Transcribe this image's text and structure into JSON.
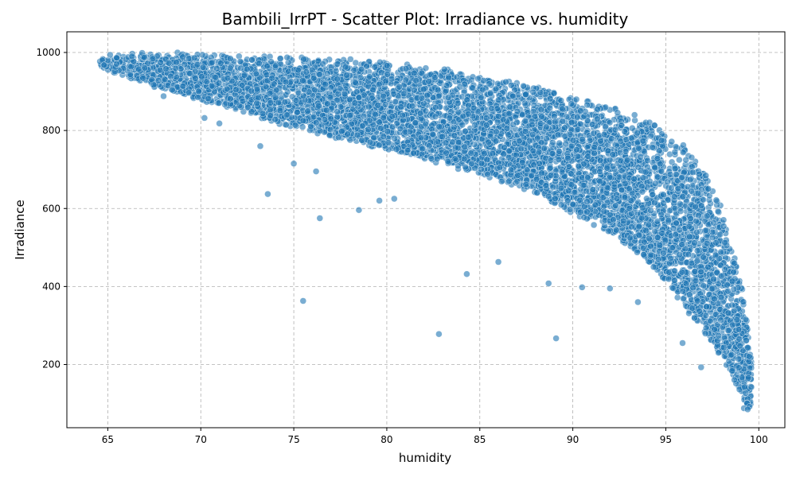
{
  "chart_data": {
    "type": "scatter",
    "title": "Bambili_IrrPT - Scatter Plot: Irradiance vs. humidity",
    "xlabel": "humidity",
    "ylabel": "Irradiance",
    "xlim": [
      62.8,
      101.4
    ],
    "ylim": [
      38,
      1053
    ],
    "x_ticks": [
      65,
      70,
      75,
      80,
      85,
      90,
      95,
      100
    ],
    "y_ticks": [
      200,
      400,
      600,
      800,
      1000
    ],
    "grid": true,
    "point_color": "#1f77b4",
    "envelope": {
      "upper": [
        [
          64.5,
          995
        ],
        [
          70,
          995
        ],
        [
          75,
          990
        ],
        [
          80,
          975
        ],
        [
          85,
          945
        ],
        [
          88,
          915
        ],
        [
          90,
          885
        ],
        [
          92,
          860
        ],
        [
          94,
          825
        ],
        [
          95,
          800
        ],
        [
          96,
          760
        ],
        [
          97,
          700
        ],
        [
          98,
          600
        ],
        [
          98.5,
          520
        ],
        [
          99,
          430
        ],
        [
          99.4,
          320
        ],
        [
          99.6,
          210
        ]
      ],
      "lower": [
        [
          64.5,
          965
        ],
        [
          68,
          905
        ],
        [
          70,
          880
        ],
        [
          75,
          810
        ],
        [
          80,
          755
        ],
        [
          85,
          690
        ],
        [
          88,
          640
        ],
        [
          90,
          590
        ],
        [
          92,
          540
        ],
        [
          94,
          470
        ],
        [
          95,
          410
        ],
        [
          96,
          350
        ],
        [
          97,
          290
        ],
        [
          98,
          220
        ],
        [
          98.8,
          150
        ],
        [
          99.3,
          100
        ],
        [
          99.6,
          85
        ]
      ]
    },
    "outliers": [
      [
        64.7,
        980
      ],
      [
        64.8,
        968
      ],
      [
        66.1,
        988
      ],
      [
        66.3,
        990
      ],
      [
        68,
        888
      ],
      [
        70.2,
        832
      ],
      [
        71,
        818
      ],
      [
        73.2,
        760
      ],
      [
        73.6,
        637
      ],
      [
        75,
        715
      ],
      [
        75.5,
        363
      ],
      [
        76.4,
        575
      ],
      [
        76.2,
        695
      ],
      [
        78.5,
        596
      ],
      [
        79.6,
        620
      ],
      [
        80.4,
        625
      ],
      [
        82.8,
        278
      ],
      [
        84.3,
        432
      ],
      [
        86,
        463
      ],
      [
        88.7,
        408
      ],
      [
        89.1,
        267
      ],
      [
        90.5,
        398
      ],
      [
        92,
        395
      ],
      [
        93.5,
        360
      ],
      [
        95.9,
        255
      ],
      [
        96.9,
        193
      ],
      [
        99.2,
        88
      ],
      [
        99.5,
        92
      ],
      [
        99.4,
        85
      ]
    ]
  }
}
